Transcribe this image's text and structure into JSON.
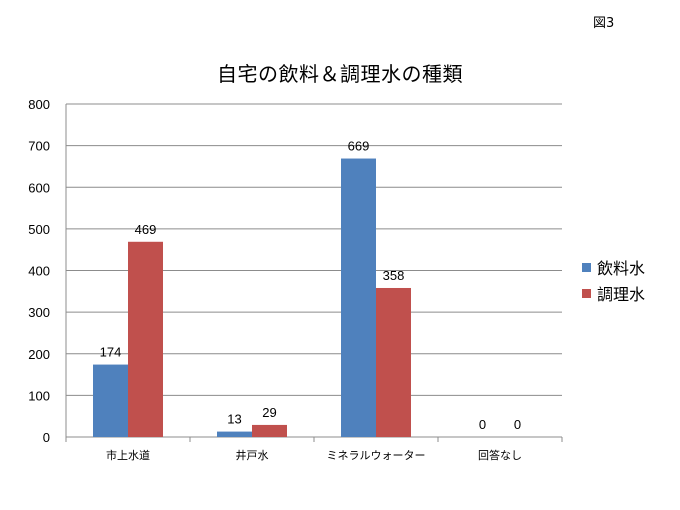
{
  "figure_label": "図3",
  "chart_data": {
    "type": "bar",
    "title": "自宅の飲料＆調理水の種類",
    "categories": [
      "市上水道",
      "井戸水",
      "ミネラルウォーター",
      "回答なし"
    ],
    "series": [
      {
        "name": "飲料水",
        "color": "#4F81BD",
        "values": [
          174,
          13,
          669,
          0
        ]
      },
      {
        "name": "調理水",
        "color": "#C0504D",
        "values": [
          469,
          29,
          358,
          0
        ]
      }
    ],
    "ylim": [
      0,
      800
    ],
    "yticks": [
      0,
      100,
      200,
      300,
      400,
      500,
      600,
      700,
      800
    ],
    "grid": true,
    "legend_position": "right"
  }
}
